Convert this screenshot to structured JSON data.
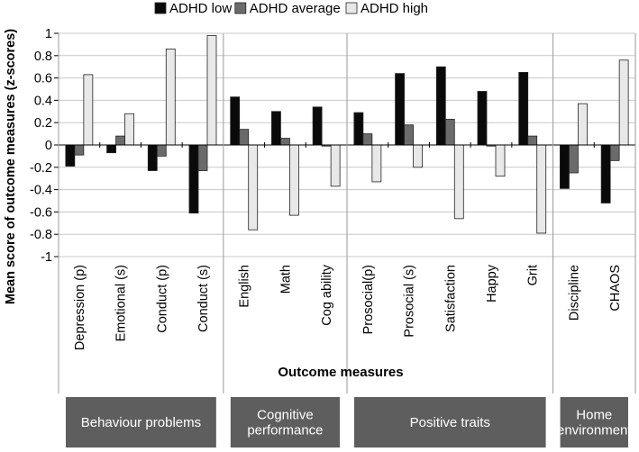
{
  "chart_data": {
    "type": "bar",
    "title": "",
    "xlabel": "Outcome measures",
    "ylabel": "Mean score of outcome measures (z-scores)",
    "ylim": [
      -1,
      1
    ],
    "yticks": [
      -1,
      -0.8,
      -0.6,
      -0.4,
      -0.2,
      0,
      0.2,
      0.4,
      0.6,
      0.8,
      1
    ],
    "grid": true,
    "legend_position": "top",
    "categories": [
      "Depression (p)",
      "Emotional (s)",
      "Conduct (p)",
      "Conduct (s)",
      "English",
      "Math",
      "Cog ability",
      "Prosocial(p)",
      "Prosocial (s)",
      "Satisfaction",
      "Happy",
      "Grit",
      "Discipline",
      "CHAOS"
    ],
    "series": [
      {
        "name": "ADHD low",
        "color": "#0a0a0a",
        "values": [
          -0.19,
          -0.07,
          -0.23,
          -0.61,
          0.43,
          0.3,
          0.34,
          0.29,
          0.64,
          0.7,
          0.48,
          0.65,
          -0.39,
          -0.52
        ]
      },
      {
        "name": "ADHD average",
        "color": "#6b6b6b",
        "values": [
          -0.09,
          0.08,
          -0.1,
          -0.23,
          0.14,
          0.06,
          -0.01,
          0.1,
          0.18,
          0.23,
          -0.01,
          0.08,
          -0.25,
          -0.14
        ]
      },
      {
        "name": "ADHD high",
        "color": "#e8e8e8",
        "values": [
          0.63,
          0.28,
          0.86,
          0.98,
          -0.76,
          -0.63,
          -0.37,
          -0.33,
          -0.2,
          -0.66,
          -0.28,
          -0.79,
          0.37,
          0.76
        ]
      }
    ],
    "groups": [
      {
        "label_lines": [
          "Behaviour problems"
        ],
        "start": 0,
        "count": 4
      },
      {
        "label_lines": [
          "Cognitive",
          "performance"
        ],
        "start": 4,
        "count": 3
      },
      {
        "label_lines": [
          "Positive traits"
        ],
        "start": 7,
        "count": 5
      },
      {
        "label_lines": [
          "Home",
          "environment"
        ],
        "start": 12,
        "count": 2
      }
    ],
    "group_box_color": "#5e5e5e",
    "group_text_color": "#ffffff"
  }
}
